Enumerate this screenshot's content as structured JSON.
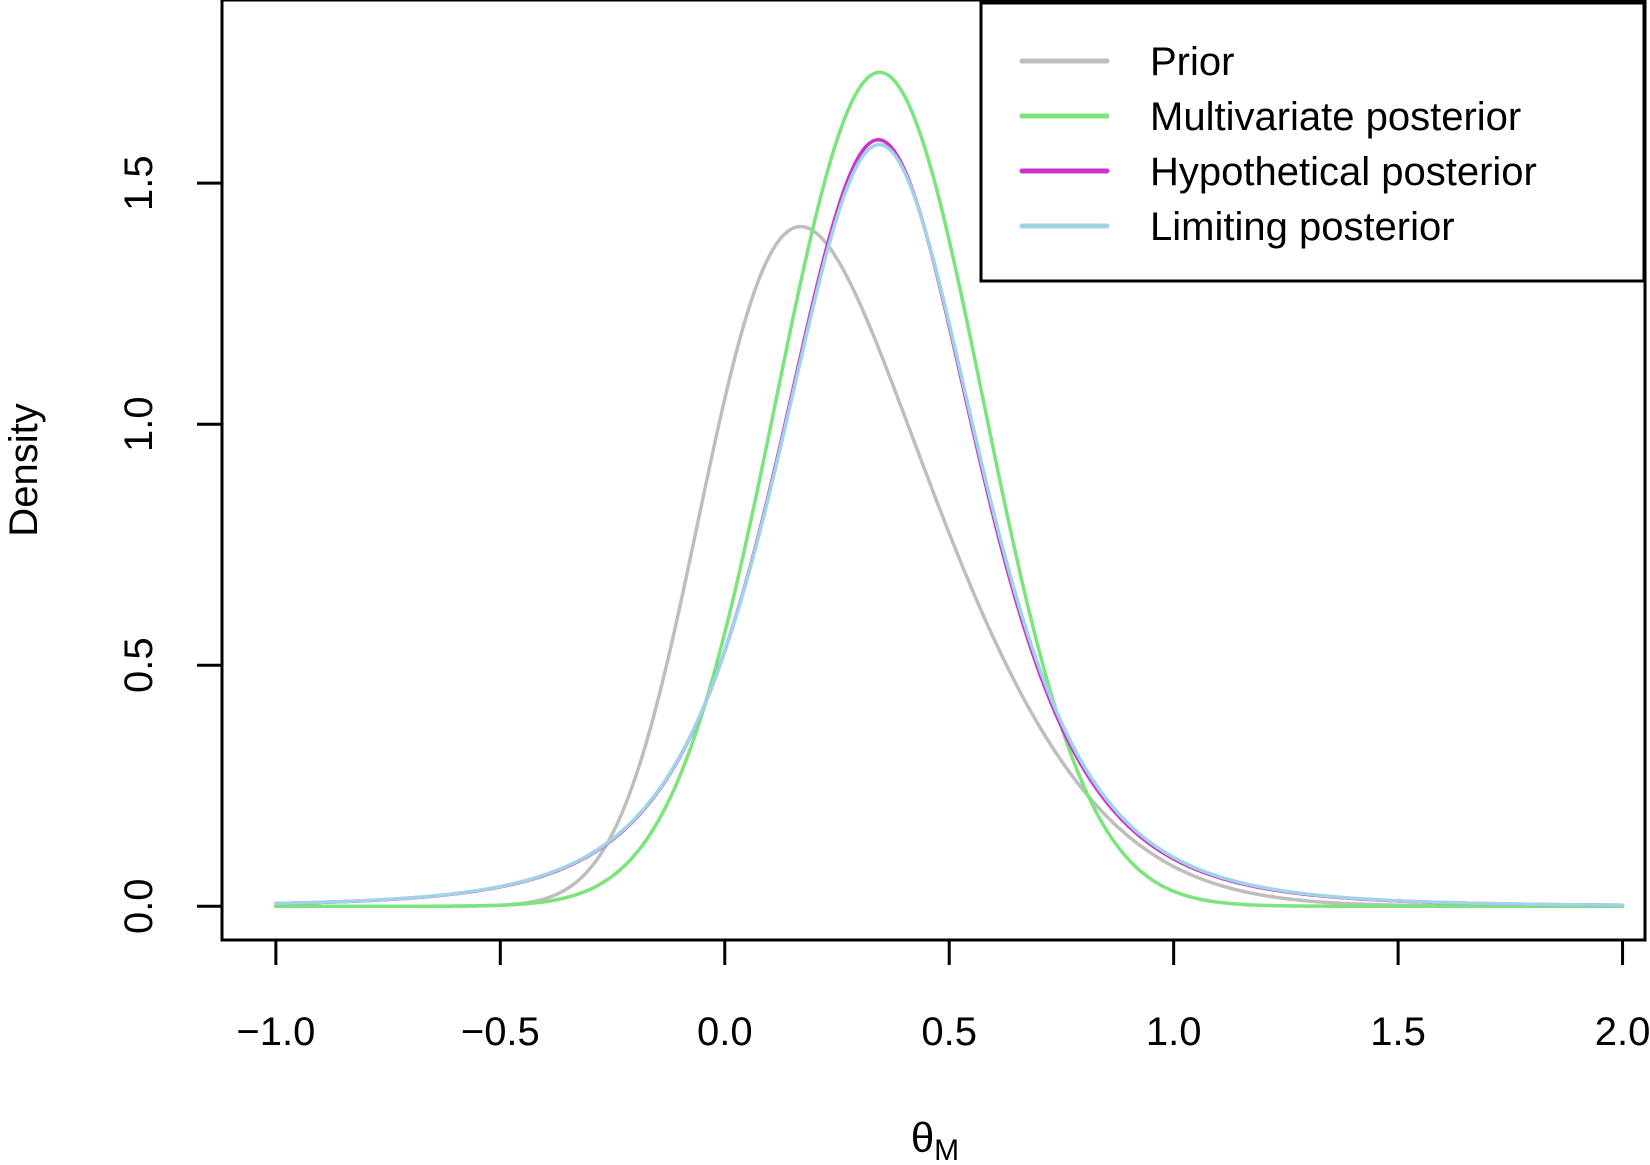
{
  "chart_data": {
    "type": "line",
    "title": "",
    "xlabel": "θ",
    "xlabel_subscript": "M",
    "ylabel": "Density",
    "xlim": [
      -1.12,
      2.05
    ],
    "ylim": [
      -0.07,
      1.88
    ],
    "x_ticks": [
      -1.0,
      -0.5,
      0.0,
      0.5,
      1.0,
      1.5,
      2.0
    ],
    "x_tick_labels": [
      "−1.0",
      "−0.5",
      "0.0",
      "0.5",
      "1.0",
      "1.5",
      "2.0"
    ],
    "y_ticks": [
      0.0,
      0.5,
      1.0,
      1.5
    ],
    "y_tick_labels": [
      "0.0",
      "0.5",
      "1.0",
      "1.5"
    ],
    "x_domain": [
      -1.0,
      2.0
    ],
    "legend_position": "top-right",
    "series": [
      {
        "name": "Prior",
        "color": "#bebebe",
        "shape": "skew-normal",
        "location": -0.04,
        "scale": 0.42,
        "alpha": 2.6,
        "mode_x": 0.29,
        "peak": 1.41
      },
      {
        "name": "Multivariate posterior",
        "color": "#7ae57a",
        "shape": "normal",
        "mean": 0.345,
        "sd": 0.231,
        "peak": 1.73
      },
      {
        "name": "Hypothetical posterior",
        "color": "#cc33cc",
        "shape": "student-t",
        "mean": 0.342,
        "scale": 0.23,
        "df": 4,
        "peak": 1.59
      },
      {
        "name": "Limiting posterior",
        "color": "#9fd3e6",
        "shape": "student-t",
        "mean": 0.344,
        "scale": 0.232,
        "df": 4,
        "peak": 1.58
      }
    ]
  }
}
